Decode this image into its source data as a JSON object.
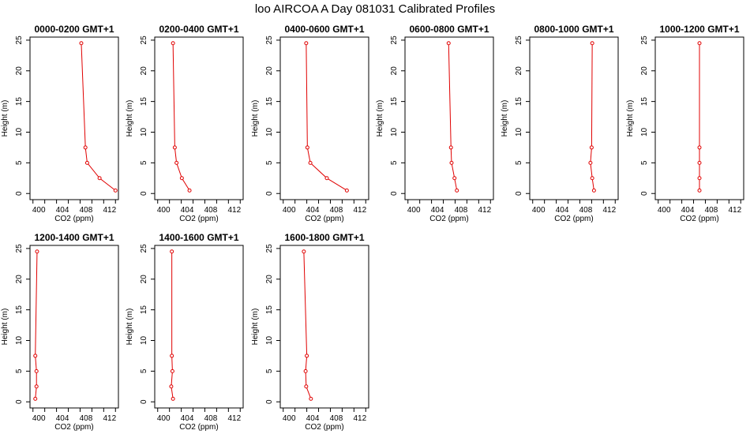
{
  "figure": {
    "title": "loo AIRCOA A  Day 081031  Calibrated Profiles"
  },
  "colors": {
    "series": "#e00000",
    "axis": "#000000",
    "background": "#ffffff"
  },
  "chart_data": [
    {
      "type": "line",
      "title": "0000-0200 GMT+1",
      "xlabel": "CO2 (ppm)",
      "ylabel": "Height (m)",
      "xticks": [
        "400",
        "404",
        "408",
        "412"
      ],
      "yticks": [
        "0",
        "5",
        "10",
        "15",
        "20",
        "25"
      ],
      "xlim": [
        398.5,
        413.5
      ],
      "ylim": [
        -1,
        25.5
      ],
      "series": [
        {
          "x": [
            413.0,
            410.3,
            408.2,
            407.9,
            407.2
          ],
          "y": [
            0.5,
            2.5,
            5.0,
            7.5,
            24.5
          ]
        }
      ]
    },
    {
      "type": "line",
      "title": "0200-0400 GMT+1",
      "xlabel": "CO2 (ppm)",
      "ylabel": "Height (m)",
      "xticks": [
        "400",
        "404",
        "408",
        "412"
      ],
      "yticks": [
        "0",
        "5",
        "10",
        "15",
        "20",
        "25"
      ],
      "xlim": [
        398.5,
        413.5
      ],
      "ylim": [
        -1,
        25.5
      ],
      "series": [
        {
          "x": [
            404.4,
            403.1,
            402.2,
            401.9,
            401.6
          ],
          "y": [
            0.5,
            2.5,
            5.0,
            7.5,
            24.5
          ]
        }
      ]
    },
    {
      "type": "line",
      "title": "0400-0600 GMT+1",
      "xlabel": "CO2 (ppm)",
      "ylabel": "Height (m)",
      "xticks": [
        "400",
        "404",
        "408",
        "412"
      ],
      "yticks": [
        "0",
        "5",
        "10",
        "15",
        "20",
        "25"
      ],
      "xlim": [
        398.5,
        413.5
      ],
      "ylim": [
        -1,
        25.5
      ],
      "series": [
        {
          "x": [
            409.8,
            406.4,
            403.6,
            403.1,
            402.9
          ],
          "y": [
            0.5,
            2.5,
            5.0,
            7.5,
            24.5
          ]
        }
      ]
    },
    {
      "type": "line",
      "title": "0600-0800 GMT+1",
      "xlabel": "CO2 (ppm)",
      "ylabel": "Height (m)",
      "xticks": [
        "400",
        "404",
        "408",
        "412"
      ],
      "yticks": [
        "0",
        "5",
        "10",
        "15",
        "20",
        "25"
      ],
      "xlim": [
        398.5,
        413.5
      ],
      "ylim": [
        -1,
        25.5
      ],
      "series": [
        {
          "x": [
            407.3,
            406.9,
            406.4,
            406.3,
            405.9
          ],
          "y": [
            0.5,
            2.5,
            5.0,
            7.5,
            24.5
          ]
        }
      ]
    },
    {
      "type": "line",
      "title": "0800-1000 GMT+1",
      "xlabel": "CO2 (ppm)",
      "ylabel": "Height (m)",
      "xticks": [
        "400",
        "404",
        "408",
        "412"
      ],
      "yticks": [
        "0",
        "5",
        "10",
        "15",
        "20",
        "25"
      ],
      "xlim": [
        398.5,
        413.5
      ],
      "ylim": [
        -1,
        25.5
      ],
      "series": [
        {
          "x": [
            409.4,
            409.1,
            408.8,
            409.0,
            409.1
          ],
          "y": [
            0.5,
            2.5,
            5.0,
            7.5,
            24.5
          ]
        }
      ]
    },
    {
      "type": "line",
      "title": "1000-1200 GMT+1",
      "xlabel": "CO2 (ppm)",
      "ylabel": "Height (m)",
      "xticks": [
        "400",
        "404",
        "408",
        "412"
      ],
      "yticks": [
        "0",
        "5",
        "10",
        "15",
        "20",
        "25"
      ],
      "xlim": [
        398.5,
        413.5
      ],
      "ylim": [
        -1,
        25.5
      ],
      "series": [
        {
          "x": [
            406.0,
            406.0,
            406.0,
            406.0,
            406.0
          ],
          "y": [
            0.5,
            2.5,
            5.0,
            7.5,
            24.5
          ]
        }
      ]
    },
    {
      "type": "line",
      "title": "1200-1400 GMT+1",
      "xlabel": "CO2 (ppm)",
      "ylabel": "Height (m)",
      "xticks": [
        "400",
        "404",
        "408",
        "412"
      ],
      "yticks": [
        "0",
        "5",
        "10",
        "15",
        "20",
        "25"
      ],
      "xlim": [
        398.5,
        413.5
      ],
      "ylim": [
        -1,
        25.5
      ],
      "series": [
        {
          "x": [
            399.4,
            399.6,
            399.6,
            399.4,
            399.7
          ],
          "y": [
            0.5,
            2.5,
            5.0,
            7.5,
            24.5
          ]
        }
      ]
    },
    {
      "type": "line",
      "title": "1400-1600 GMT+1",
      "xlabel": "CO2 (ppm)",
      "ylabel": "Height (m)",
      "xticks": [
        "400",
        "404",
        "408",
        "412"
      ],
      "yticks": [
        "0",
        "5",
        "10",
        "15",
        "20",
        "25"
      ],
      "xlim": [
        398.5,
        413.5
      ],
      "ylim": [
        -1,
        25.5
      ],
      "series": [
        {
          "x": [
            401.6,
            401.3,
            401.5,
            401.4,
            401.4
          ],
          "y": [
            0.5,
            2.5,
            5.0,
            7.5,
            24.5
          ]
        }
      ]
    },
    {
      "type": "line",
      "title": "1600-1800 GMT+1",
      "xlabel": "CO2 (ppm)",
      "ylabel": "Height (m)",
      "xticks": [
        "400",
        "404",
        "408",
        "412"
      ],
      "yticks": [
        "0",
        "5",
        "10",
        "15",
        "20",
        "25"
      ],
      "xlim": [
        398.5,
        413.5
      ],
      "ylim": [
        -1,
        25.5
      ],
      "series": [
        {
          "x": [
            403.7,
            402.9,
            402.8,
            403.0,
            402.5
          ],
          "y": [
            0.5,
            2.5,
            5.0,
            7.5,
            24.5
          ]
        }
      ]
    }
  ]
}
